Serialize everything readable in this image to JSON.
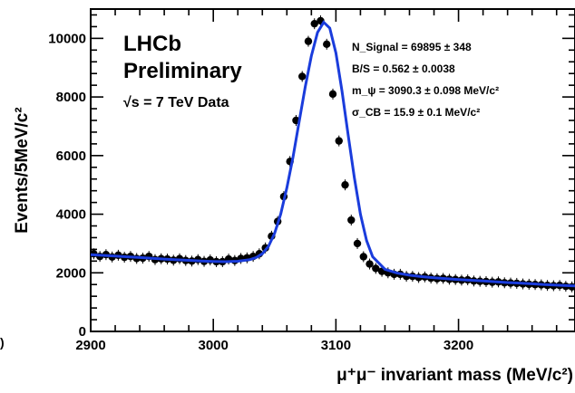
{
  "chart_data": {
    "type": "scatter",
    "xlabel": "μ⁺μ⁻ invariant mass (MeV/c²)",
    "ylabel": "Events/5MeV/c²",
    "xlim": [
      2900,
      3295
    ],
    "ylim": [
      0,
      11000
    ],
    "x_ticks": [
      2900,
      3000,
      3100,
      3200
    ],
    "y_ticks": [
      0,
      2000,
      4000,
      6000,
      8000,
      10000
    ],
    "grid": false,
    "experiment_label": "LHCb",
    "status_label": "Preliminary",
    "dataset_label": "√s = 7 TeV Data",
    "fit_results": [
      "N_Signal = 69895 ± 348",
      "B/S = 0.562 ± 0.0038",
      "m_ψ = 3090.3 ± 0.098 MeV/c²",
      "σ_CB = 15.9 ± 0.1 MeV/c²"
    ],
    "fit_color": "#1a3cdc",
    "marker_color": "#000000",
    "series": [
      {
        "kind": "data_points",
        "x": [
          2902.5,
          2907.5,
          2912.5,
          2917.5,
          2922.5,
          2927.5,
          2932.5,
          2937.5,
          2942.5,
          2947.5,
          2952.5,
          2957.5,
          2962.5,
          2967.5,
          2972.5,
          2977.5,
          2982.5,
          2987.5,
          2992.5,
          2997.5,
          3002.5,
          3007.5,
          3012.5,
          3017.5,
          3022.5,
          3027.5,
          3032.5,
          3037.5,
          3042.5,
          3047.5,
          3052.5,
          3057.5,
          3062.5,
          3067.5,
          3072.5,
          3077.5,
          3082.5,
          3087.5,
          3092.5,
          3097.5,
          3102.5,
          3107.5,
          3112.5,
          3117.5,
          3122.5,
          3127.5,
          3132.5,
          3137.5,
          3142.5,
          3147.5,
          3152.5,
          3157.5,
          3162.5,
          3167.5,
          3172.5,
          3177.5,
          3182.5,
          3187.5,
          3192.5,
          3197.5,
          3202.5,
          3207.5,
          3212.5,
          3217.5,
          3222.5,
          3227.5,
          3232.5,
          3237.5,
          3242.5,
          3247.5,
          3252.5,
          3257.5,
          3262.5,
          3267.5,
          3272.5,
          3277.5,
          3282.5,
          3287.5,
          3292.5
        ],
        "y": [
          2650,
          2560,
          2620,
          2540,
          2600,
          2530,
          2560,
          2490,
          2500,
          2560,
          2450,
          2480,
          2470,
          2430,
          2480,
          2420,
          2400,
          2450,
          2390,
          2440,
          2380,
          2380,
          2470,
          2420,
          2490,
          2510,
          2560,
          2650,
          2850,
          3250,
          3750,
          4600,
          5800,
          7200,
          8700,
          9900,
          10500,
          10600,
          9800,
          8100,
          6500,
          5000,
          3800,
          3000,
          2550,
          2300,
          2150,
          2050,
          2000,
          1950,
          1950,
          1880,
          1880,
          1840,
          1860,
          1820,
          1800,
          1810,
          1780,
          1770,
          1750,
          1760,
          1720,
          1710,
          1700,
          1680,
          1690,
          1660,
          1650,
          1640,
          1620,
          1610,
          1600,
          1590,
          1570,
          1560,
          1570,
          1540,
          1520
        ]
      },
      {
        "kind": "fit_curve",
        "x": [
          2900,
          2910,
          2920,
          2930,
          2940,
          2950,
          2960,
          2970,
          2980,
          2990,
          3000,
          3010,
          3020,
          3030,
          3035,
          3040,
          3045,
          3050,
          3055,
          3060,
          3065,
          3070,
          3075,
          3080,
          3085,
          3090,
          3095,
          3100,
          3105,
          3110,
          3115,
          3120,
          3125,
          3130,
          3140,
          3150,
          3160,
          3170,
          3180,
          3190,
          3200,
          3210,
          3220,
          3230,
          3240,
          3250,
          3260,
          3270,
          3280,
          3295
        ],
        "y": [
          2620,
          2595,
          2570,
          2545,
          2520,
          2495,
          2470,
          2445,
          2425,
          2405,
          2390,
          2380,
          2395,
          2450,
          2520,
          2650,
          2900,
          3350,
          4000,
          4900,
          5950,
          7150,
          8350,
          9400,
          10200,
          10550,
          10350,
          9500,
          8200,
          6700,
          5250,
          4000,
          3100,
          2550,
          2120,
          1990,
          1920,
          1870,
          1830,
          1800,
          1770,
          1745,
          1720,
          1695,
          1670,
          1650,
          1625,
          1600,
          1580,
          1550
        ]
      }
    ]
  },
  "edge_glyph": ")"
}
